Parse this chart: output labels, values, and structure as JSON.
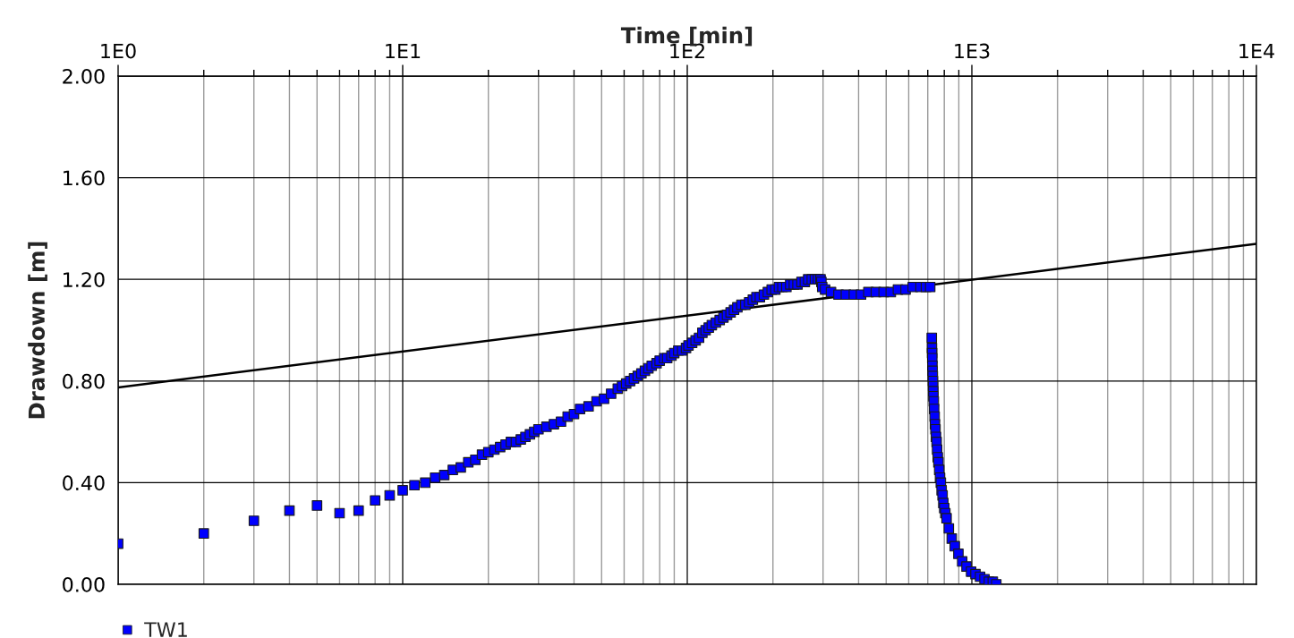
{
  "chart_data": {
    "type": "scatter",
    "xlabel": "Time [min]",
    "ylabel": "Drawdown [m]",
    "log": "x",
    "xlim": [
      1,
      10000
    ],
    "ylim": [
      0,
      2
    ],
    "xticks": [
      {
        "value": 1,
        "label": "1E0"
      },
      {
        "value": 2,
        "label": null
      },
      {
        "value": 3,
        "label": null
      },
      {
        "value": 4,
        "label": null
      },
      {
        "value": 5,
        "label": null
      },
      {
        "value": 6,
        "label": null
      },
      {
        "value": 7,
        "label": null
      },
      {
        "value": 8,
        "label": null
      },
      {
        "value": 9,
        "label": null
      },
      {
        "value": 10,
        "label": "1E1"
      },
      {
        "value": 20,
        "label": null
      },
      {
        "value": 30,
        "label": null
      },
      {
        "value": 40,
        "label": null
      },
      {
        "value": 50,
        "label": null
      },
      {
        "value": 60,
        "label": null
      },
      {
        "value": 70,
        "label": null
      },
      {
        "value": 80,
        "label": null
      },
      {
        "value": 90,
        "label": null
      },
      {
        "value": 100,
        "label": "1E2"
      },
      {
        "value": 200,
        "label": null
      },
      {
        "value": 300,
        "label": null
      },
      {
        "value": 400,
        "label": null
      },
      {
        "value": 500,
        "label": null
      },
      {
        "value": 600,
        "label": null
      },
      {
        "value": 700,
        "label": null
      },
      {
        "value": 800,
        "label": null
      },
      {
        "value": 900,
        "label": null
      },
      {
        "value": 1000,
        "label": "1E3"
      },
      {
        "value": 2000,
        "label": null
      },
      {
        "value": 3000,
        "label": null
      },
      {
        "value": 4000,
        "label": null
      },
      {
        "value": 5000,
        "label": null
      },
      {
        "value": 6000,
        "label": null
      },
      {
        "value": 7000,
        "label": null
      },
      {
        "value": 8000,
        "label": null
      },
      {
        "value": 9000,
        "label": null
      },
      {
        "value": 10000,
        "label": "1E4"
      }
    ],
    "yticks": [
      {
        "value": 0,
        "label": "0.00"
      },
      {
        "value": 0.4,
        "label": "0.40"
      },
      {
        "value": 0.8,
        "label": "0.80"
      },
      {
        "value": 1.2,
        "label": "1.20"
      },
      {
        "value": 1.6,
        "label": "1.60"
      },
      {
        "value": 2,
        "label": "2.00"
      }
    ],
    "grid": true,
    "legend": "bottom left",
    "line_style": "solid",
    "series": [
      {
        "name": "TW1",
        "color": "#0000ff",
        "marker": "square",
        "x": [
          1,
          2,
          3,
          4,
          5,
          6,
          7,
          8,
          9,
          10,
          11,
          12,
          13,
          14,
          15,
          16,
          17,
          18,
          19,
          20,
          21,
          22,
          23,
          24,
          25,
          26,
          27,
          28,
          29,
          30,
          32,
          34,
          36,
          38,
          40,
          42,
          45,
          48,
          51,
          54,
          57,
          59,
          61,
          63,
          65,
          67,
          69,
          71,
          73,
          75,
          78,
          80,
          83,
          85,
          88,
          90,
          93,
          96,
          99,
          101,
          104,
          107,
          110,
          113,
          116,
          119,
          122,
          126,
          130,
          134,
          138,
          142,
          146,
          150,
          155,
          160,
          165,
          170,
          175,
          180,
          186,
          192,
          198,
          204,
          210,
          216,
          223,
          230,
          237,
          244,
          252,
          259,
          266,
          274,
          281,
          288,
          294,
          296,
          298,
          305,
          320,
          340,
          361,
          385,
          408,
          433,
          460,
          490,
          519,
          550,
          585,
          620,
          660,
          690,
          714,
          723,
          724,
          725,
          726,
          727,
          728,
          729,
          730,
          731,
          732,
          733,
          735,
          737,
          740,
          742,
          745,
          748,
          752,
          755,
          759,
          763,
          768,
          773,
          778,
          783,
          789,
          794,
          800,
          807,
          815,
          830,
          850,
          871,
          897,
          925,
          958,
          994,
          1030,
          1069,
          1108,
          1148,
          1185,
          1219
        ],
        "values": [
          0.16,
          0.2,
          0.25,
          0.29,
          0.31,
          0.28,
          0.29,
          0.33,
          0.35,
          0.37,
          0.39,
          0.4,
          0.42,
          0.43,
          0.45,
          0.46,
          0.48,
          0.49,
          0.51,
          0.52,
          0.53,
          0.54,
          0.55,
          0.56,
          0.56,
          0.57,
          0.58,
          0.59,
          0.6,
          0.61,
          0.62,
          0.63,
          0.64,
          0.66,
          0.67,
          0.69,
          0.7,
          0.72,
          0.73,
          0.75,
          0.77,
          0.78,
          0.79,
          0.8,
          0.81,
          0.82,
          0.83,
          0.84,
          0.85,
          0.86,
          0.87,
          0.88,
          0.89,
          0.89,
          0.9,
          0.91,
          0.92,
          0.92,
          0.93,
          0.94,
          0.95,
          0.96,
          0.97,
          0.99,
          1.0,
          1.01,
          1.02,
          1.03,
          1.04,
          1.05,
          1.06,
          1.07,
          1.08,
          1.09,
          1.1,
          1.1,
          1.11,
          1.12,
          1.13,
          1.13,
          1.14,
          1.15,
          1.16,
          1.16,
          1.17,
          1.17,
          1.17,
          1.18,
          1.18,
          1.18,
          1.19,
          1.19,
          1.2,
          1.2,
          1.2,
          1.2,
          1.2,
          1.19,
          1.17,
          1.16,
          1.15,
          1.14,
          1.14,
          1.14,
          1.14,
          1.15,
          1.15,
          1.15,
          1.15,
          1.16,
          1.16,
          1.17,
          1.17,
          1.17,
          1.17,
          0.97,
          0.93,
          0.91,
          0.89,
          0.86,
          0.84,
          0.82,
          0.8,
          0.78,
          0.76,
          0.74,
          0.72,
          0.69,
          0.66,
          0.63,
          0.61,
          0.58,
          0.56,
          0.53,
          0.5,
          0.48,
          0.45,
          0.42,
          0.4,
          0.37,
          0.35,
          0.32,
          0.3,
          0.28,
          0.26,
          0.22,
          0.18,
          0.15,
          0.12,
          0.09,
          0.07,
          0.05,
          0.04,
          0.03,
          0.02,
          0.01,
          0.01,
          0.0
        ]
      },
      {
        "type": "line",
        "color": "#000000",
        "x": [
          1,
          10000
        ],
        "values": [
          0.775,
          1.34
        ]
      }
    ]
  }
}
